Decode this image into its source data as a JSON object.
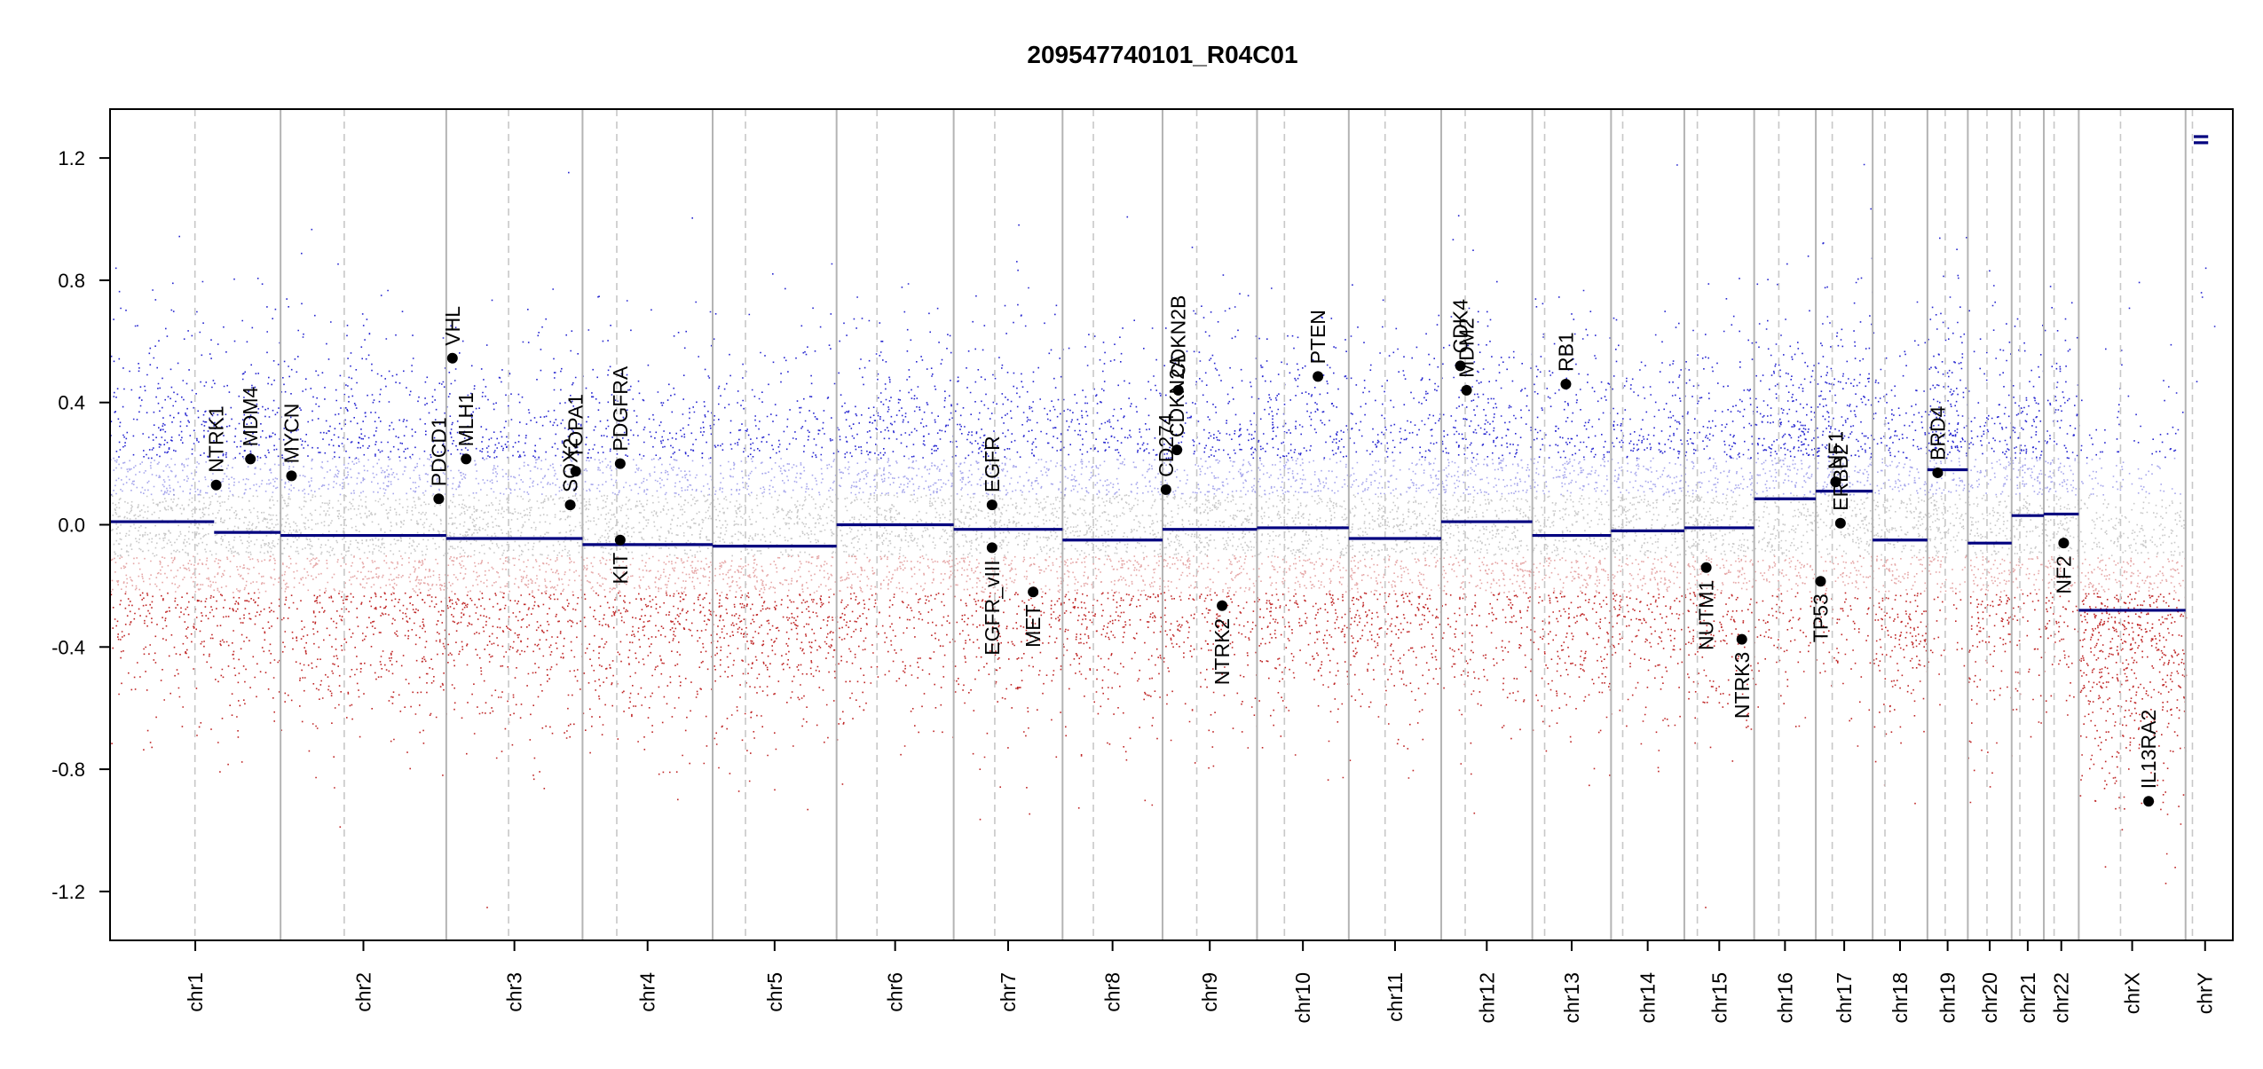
{
  "chart_data": {
    "type": "scatter",
    "title": "209547740101_R04C01",
    "xlabel": "",
    "ylabel": "",
    "ylim": [
      -1.36,
      1.36
    ],
    "yticks": [
      "1.2",
      "0.8",
      "0.4",
      "0.0",
      "-0.4",
      "-0.8",
      "-1.2"
    ],
    "ytick_values": [
      1.2,
      0.8,
      0.4,
      0.0,
      -0.4,
      -0.8,
      -1.2
    ],
    "genome_length_mb": 3100,
    "chromosomes": [
      {
        "name": "chr1",
        "start": 0,
        "end": 249,
        "centromere": 124
      },
      {
        "name": "chr2",
        "start": 249,
        "end": 491,
        "centromere": 342
      },
      {
        "name": "chr3",
        "start": 491,
        "end": 690,
        "centromere": 582
      },
      {
        "name": "chr4",
        "start": 690,
        "end": 880,
        "centromere": 740
      },
      {
        "name": "chr5",
        "start": 880,
        "end": 1061,
        "centromere": 928
      },
      {
        "name": "chr6",
        "start": 1061,
        "end": 1232,
        "centromere": 1120
      },
      {
        "name": "chr7",
        "start": 1232,
        "end": 1391,
        "centromere": 1292
      },
      {
        "name": "chr8",
        "start": 1391,
        "end": 1537,
        "centromere": 1436
      },
      {
        "name": "chr9",
        "start": 1537,
        "end": 1675,
        "centromere": 1587
      },
      {
        "name": "chr10",
        "start": 1675,
        "end": 1809,
        "centromere": 1715
      },
      {
        "name": "chr11",
        "start": 1809,
        "end": 1944,
        "centromere": 1862
      },
      {
        "name": "chr12",
        "start": 1944,
        "end": 2077,
        "centromere": 1979
      },
      {
        "name": "chr13",
        "start": 2077,
        "end": 2192,
        "centromere": 2095
      },
      {
        "name": "chr14",
        "start": 2192,
        "end": 2299,
        "centromere": 2209
      },
      {
        "name": "chr15",
        "start": 2299,
        "end": 2401,
        "centromere": 2318
      },
      {
        "name": "chr16",
        "start": 2401,
        "end": 2491,
        "centromere": 2437
      },
      {
        "name": "chr17",
        "start": 2491,
        "end": 2574,
        "centromere": 2515
      },
      {
        "name": "chr18",
        "start": 2574,
        "end": 2654,
        "centromere": 2592
      },
      {
        "name": "chr19",
        "start": 2654,
        "end": 2713,
        "centromere": 2680
      },
      {
        "name": "chr20",
        "start": 2713,
        "end": 2777,
        "centromere": 2741
      },
      {
        "name": "chr21",
        "start": 2777,
        "end": 2824,
        "centromere": 2789
      },
      {
        "name": "chr22",
        "start": 2824,
        "end": 2875,
        "centromere": 2839
      },
      {
        "name": "chrX",
        "start": 2875,
        "end": 3031,
        "centromere": 2936
      },
      {
        "name": "chrY",
        "start": 3031,
        "end": 3088,
        "centromere": 3041
      }
    ],
    "segments": [
      {
        "chr": "chr1",
        "start": 0,
        "end": 152,
        "value": 0.01
      },
      {
        "chr": "chr1",
        "start": 152,
        "end": 249,
        "value": -0.025
      },
      {
        "chr": "chr2",
        "start": 249,
        "end": 491,
        "value": -0.035
      },
      {
        "chr": "chr3",
        "start": 491,
        "end": 690,
        "value": -0.045
      },
      {
        "chr": "chr4",
        "start": 690,
        "end": 880,
        "value": -0.065
      },
      {
        "chr": "chr5",
        "start": 880,
        "end": 1061,
        "value": -0.07
      },
      {
        "chr": "chr6",
        "start": 1061,
        "end": 1232,
        "value": 0.0
      },
      {
        "chr": "chr7",
        "start": 1232,
        "end": 1391,
        "value": -0.015
      },
      {
        "chr": "chr8",
        "start": 1391,
        "end": 1537,
        "value": -0.05
      },
      {
        "chr": "chr9",
        "start": 1537,
        "end": 1675,
        "value": -0.015
      },
      {
        "chr": "chr10",
        "start": 1675,
        "end": 1809,
        "value": -0.01
      },
      {
        "chr": "chr11",
        "start": 1809,
        "end": 1944,
        "value": -0.045
      },
      {
        "chr": "chr12",
        "start": 1944,
        "end": 2077,
        "value": 0.01
      },
      {
        "chr": "chr13",
        "start": 2077,
        "end": 2192,
        "value": -0.035
      },
      {
        "chr": "chr14",
        "start": 2192,
        "end": 2299,
        "value": -0.02
      },
      {
        "chr": "chr15",
        "start": 2299,
        "end": 2401,
        "value": -0.01
      },
      {
        "chr": "chr16",
        "start": 2401,
        "end": 2491,
        "value": 0.085
      },
      {
        "chr": "chr17",
        "start": 2491,
        "end": 2574,
        "value": 0.11
      },
      {
        "chr": "chr18",
        "start": 2574,
        "end": 2654,
        "value": -0.05
      },
      {
        "chr": "chr19",
        "start": 2654,
        "end": 2713,
        "value": 0.18
      },
      {
        "chr": "chr20",
        "start": 2713,
        "end": 2777,
        "value": -0.06
      },
      {
        "chr": "chr21",
        "start": 2777,
        "end": 2824,
        "value": 0.03
      },
      {
        "chr": "chr22",
        "start": 2824,
        "end": 2875,
        "value": 0.035
      },
      {
        "chr": "chrX",
        "start": 2875,
        "end": 3031,
        "value": -0.28
      },
      {
        "chr": "chrY",
        "start": 3043,
        "end": 3064,
        "value": 1.25
      },
      {
        "chr": "chrY",
        "start": 3043,
        "end": 3064,
        "value": 1.27
      }
    ],
    "genes": [
      {
        "name": "NTRK1",
        "pos": 155,
        "value": 0.13,
        "label_side": "above"
      },
      {
        "name": "MDM4",
        "pos": 205,
        "value": 0.215,
        "label_side": "above"
      },
      {
        "name": "MYCN",
        "pos": 265,
        "value": 0.16,
        "label_side": "above"
      },
      {
        "name": "PDCD1",
        "pos": 480,
        "value": 0.085,
        "label_side": "above"
      },
      {
        "name": "VHL",
        "pos": 500,
        "value": 0.545,
        "label_side": "above"
      },
      {
        "name": "MLH1",
        "pos": 520,
        "value": 0.215,
        "label_side": "above"
      },
      {
        "name": "SOX2",
        "pos": 672,
        "value": 0.065,
        "label_side": "above"
      },
      {
        "name": "TOPA1",
        "pos": 680,
        "value": 0.175,
        "label_side": "above"
      },
      {
        "name": "PDGFRA",
        "pos": 745,
        "value": 0.2,
        "label_side": "above"
      },
      {
        "name": "KIT",
        "pos": 745,
        "value": -0.05,
        "label_side": "below"
      },
      {
        "name": "EGFR",
        "pos": 1288,
        "value": 0.065,
        "label_side": "above"
      },
      {
        "name": "EGFR_vIII",
        "pos": 1288,
        "value": -0.075,
        "label_side": "below"
      },
      {
        "name": "MET",
        "pos": 1348,
        "value": -0.22,
        "label_side": "below"
      },
      {
        "name": "CD274",
        "pos": 1542,
        "value": 0.115,
        "label_side": "above"
      },
      {
        "name": "CDKN2A",
        "pos": 1558,
        "value": 0.245,
        "label_side": "above"
      },
      {
        "name": "CDKN2B",
        "pos": 1560,
        "value": 0.44,
        "label_side": "above"
      },
      {
        "name": "NTRK2",
        "pos": 1624,
        "value": -0.265,
        "label_side": "below"
      },
      {
        "name": "PTEN",
        "pos": 1764,
        "value": 0.485,
        "label_side": "above"
      },
      {
        "name": "CDK4",
        "pos": 1972,
        "value": 0.52,
        "label_side": "above"
      },
      {
        "name": "MDM2",
        "pos": 1981,
        "value": 0.44,
        "label_side": "above"
      },
      {
        "name": "RB1",
        "pos": 2126,
        "value": 0.46,
        "label_side": "above"
      },
      {
        "name": "NUTM1",
        "pos": 2331,
        "value": -0.14,
        "label_side": "below"
      },
      {
        "name": "NTRK3",
        "pos": 2383,
        "value": -0.375,
        "label_side": "below"
      },
      {
        "name": "TP53",
        "pos": 2498,
        "value": -0.185,
        "label_side": "below"
      },
      {
        "name": "NF1",
        "pos": 2520,
        "value": 0.14,
        "label_side": "above"
      },
      {
        "name": "ERBB2",
        "pos": 2527,
        "value": 0.005,
        "label_side": "above"
      },
      {
        "name": "BRD4",
        "pos": 2669,
        "value": 0.17,
        "label_side": "above"
      },
      {
        "name": "NF2",
        "pos": 2853,
        "value": -0.06,
        "label_side": "below"
      },
      {
        "name": "IL13RA2",
        "pos": 2977,
        "value": -0.905,
        "label_side": "above"
      }
    ],
    "colors": {
      "gain": "#0000c8",
      "loss": "#b40000",
      "neutral": "#9a9a9a",
      "segment": "#00007f",
      "gene_point": "#000000",
      "chr_boundary": "#b4b4b4",
      "centromere": "#c8c8c8"
    },
    "grid": false,
    "legend": "none"
  }
}
